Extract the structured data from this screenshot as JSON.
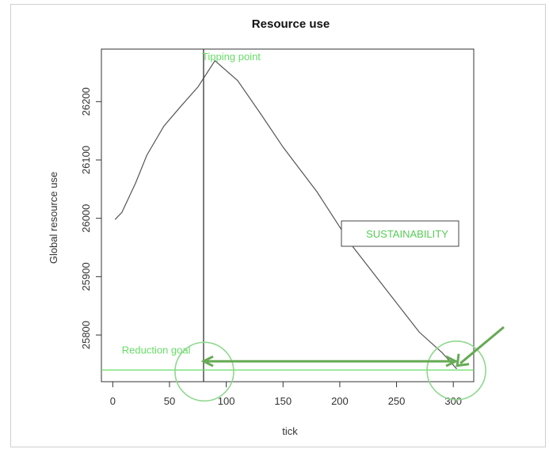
{
  "chart_data": {
    "type": "line",
    "title": "Resource use",
    "xlabel": "tick",
    "ylabel": "Global resource use",
    "xlim": [
      -10,
      318
    ],
    "ylim": [
      25720,
      26290
    ],
    "x_ticks": [
      0,
      50,
      100,
      150,
      200,
      250,
      300
    ],
    "x_tick_labels": [
      "0",
      "50",
      "100",
      "150",
      "200",
      "250",
      "300"
    ],
    "y_ticks": [
      25800,
      25900,
      26000,
      26100,
      26200
    ],
    "y_tick_labels": [
      "25800",
      "25900",
      "26000",
      "26100",
      "26200"
    ],
    "series": [
      {
        "color": "#555555",
        "x": [
          2,
          8,
          20,
          30,
          45,
          60,
          75,
          90,
          110,
          130,
          150,
          180,
          210,
          240,
          270,
          290,
          303
        ],
        "y": [
          25998,
          26010,
          26060,
          26108,
          26158,
          26192,
          26225,
          26270,
          26236,
          26180,
          26122,
          26045,
          25955,
          25880,
          25805,
          25770,
          25742
        ]
      }
    ],
    "annotations": {
      "tipping_point": {
        "label": "Tipping point",
        "x": 80,
        "color": "#66dd66"
      },
      "reduction_goal": {
        "label": "Reduction goal",
        "y": 25740,
        "color": "#66dd66"
      },
      "sustainability_box": {
        "label": "SUSTAINABILITY",
        "color": "#55cc55"
      },
      "circles": [
        {
          "x": 80,
          "y": 25740
        },
        {
          "x": 302,
          "y": 25742
        }
      ],
      "arrow": {
        "x_from": 302,
        "x_to": 80,
        "y": 25755,
        "color": "#66aa55"
      }
    },
    "grid": false,
    "legend": "none"
  }
}
